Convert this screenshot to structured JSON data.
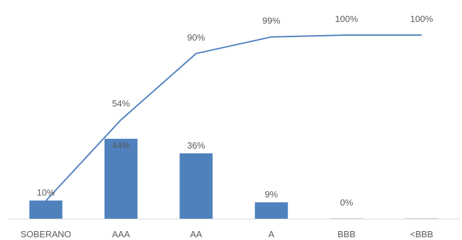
{
  "chart_data": {
    "type": "bar",
    "categories": [
      "SOBERANO",
      "AAA",
      "AA",
      "A",
      "BBB",
      "<BBB"
    ],
    "series": [
      {
        "values": [
          10,
          44,
          36,
          9,
          0,
          0
        ],
        "labels": [
          "10%",
          "44%",
          "36%",
          "9%",
          "0%",
          ""
        ]
      },
      {
        "type": "line",
        "values": [
          10,
          54,
          90,
          99,
          100,
          100
        ],
        "labels": [
          "",
          "54%",
          "90%",
          "99%",
          "100%",
          "100%"
        ]
      }
    ],
    "ylim": [
      0,
      100
    ],
    "grid": false,
    "legend": "none",
    "colors": {
      "bar": "#4f81bd",
      "line": "#4f81bd",
      "axis": "#d9d9d9",
      "text": "#595959"
    }
  }
}
